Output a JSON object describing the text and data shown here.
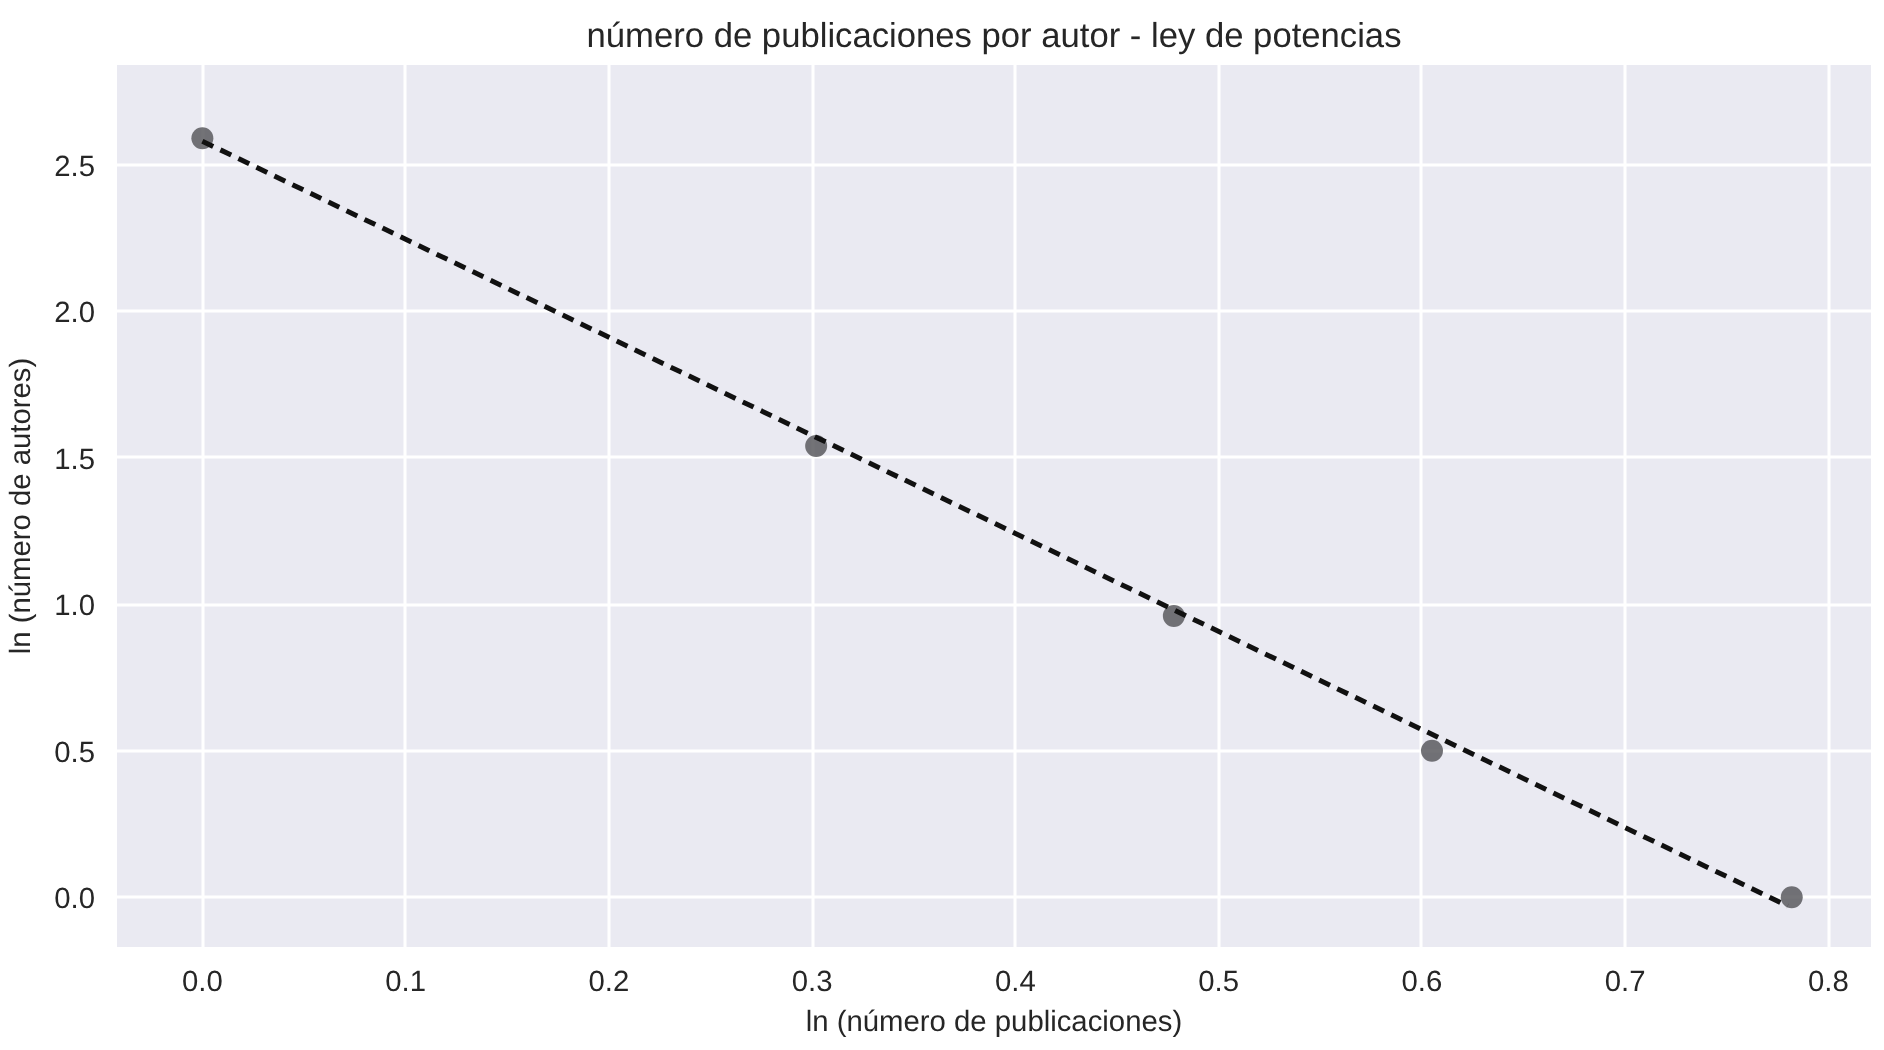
{
  "chart_data": {
    "type": "scatter",
    "title": "número de publicaciones por autor - ley de potencias",
    "xlabel": "ln (número de publicaciones)",
    "ylabel": "ln (número de autores)",
    "series": [
      {
        "color": "#5a5a5f",
        "x": [
          0.0,
          0.302,
          0.478,
          0.605,
          0.782
        ],
        "values": [
          2.59,
          1.54,
          0.96,
          0.5,
          0.0
        ],
        "marker": "circle"
      },
      {
        "type": "line",
        "color": "#111111",
        "x": [
          0.0,
          0.78
        ],
        "values": [
          2.58,
          -0.03
        ],
        "line_style": "dashed",
        "marker": "none"
      }
    ],
    "xlim": [
      -0.042,
      0.821
    ],
    "ylim": [
      -0.17,
      2.84
    ],
    "xticks": [
      {
        "value": 0,
        "label": "0.0"
      },
      {
        "value": 0.1,
        "label": "0.1"
      },
      {
        "value": 0.2,
        "label": "0.2"
      },
      {
        "value": 0.3,
        "label": "0.3"
      },
      {
        "value": 0.4,
        "label": "0.4"
      },
      {
        "value": 0.5,
        "label": "0.5"
      },
      {
        "value": 0.6,
        "label": "0.6"
      },
      {
        "value": 0.7,
        "label": "0.7"
      },
      {
        "value": 0.8,
        "label": "0.8"
      }
    ],
    "yticks": [
      {
        "value": 0,
        "label": "0.0"
      },
      {
        "value": 0.5,
        "label": "0.5"
      },
      {
        "value": 1,
        "label": "1.0"
      },
      {
        "value": 1.5,
        "label": "1.5"
      },
      {
        "value": 2,
        "label": "2.0"
      },
      {
        "value": 2.5,
        "label": "2.5"
      }
    ],
    "grid": true
  }
}
